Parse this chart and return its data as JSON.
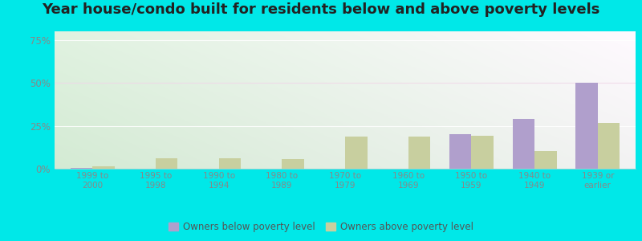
{
  "title": "Year house/condo built for residents below and above poverty levels",
  "categories": [
    "1999 to\n2000",
    "1995 to\n1998",
    "1990 to\n1994",
    "1980 to\n1989",
    "1970 to\n1979",
    "1960 to\n1969",
    "1950 to\n1959",
    "1940 to\n1949",
    "1939 or\nearlier"
  ],
  "below_poverty": [
    0.5,
    0.0,
    0.0,
    0.0,
    0.0,
    0.0,
    20.0,
    29.0,
    50.0
  ],
  "above_poverty": [
    1.5,
    6.0,
    6.0,
    5.5,
    18.5,
    18.5,
    19.0,
    10.5,
    26.5
  ],
  "below_color": "#b09fcc",
  "above_color": "#c8cf9f",
  "ylim": [
    0,
    80
  ],
  "yticks": [
    0,
    25,
    50,
    75
  ],
  "ytick_labels": [
    "0%",
    "25%",
    "50%",
    "75%"
  ],
  "outer_bg": "#00e8e8",
  "plot_bg_topleft": "#d8f0d0",
  "plot_bg_topright": "#f0f8f8",
  "plot_bg_bottom": "#e8f5e0",
  "legend_below": "Owners below poverty level",
  "legend_above": "Owners above poverty level",
  "title_fontsize": 13,
  "bar_width": 0.35,
  "grid_color": "#e8d8e8",
  "tick_color": "#888888"
}
